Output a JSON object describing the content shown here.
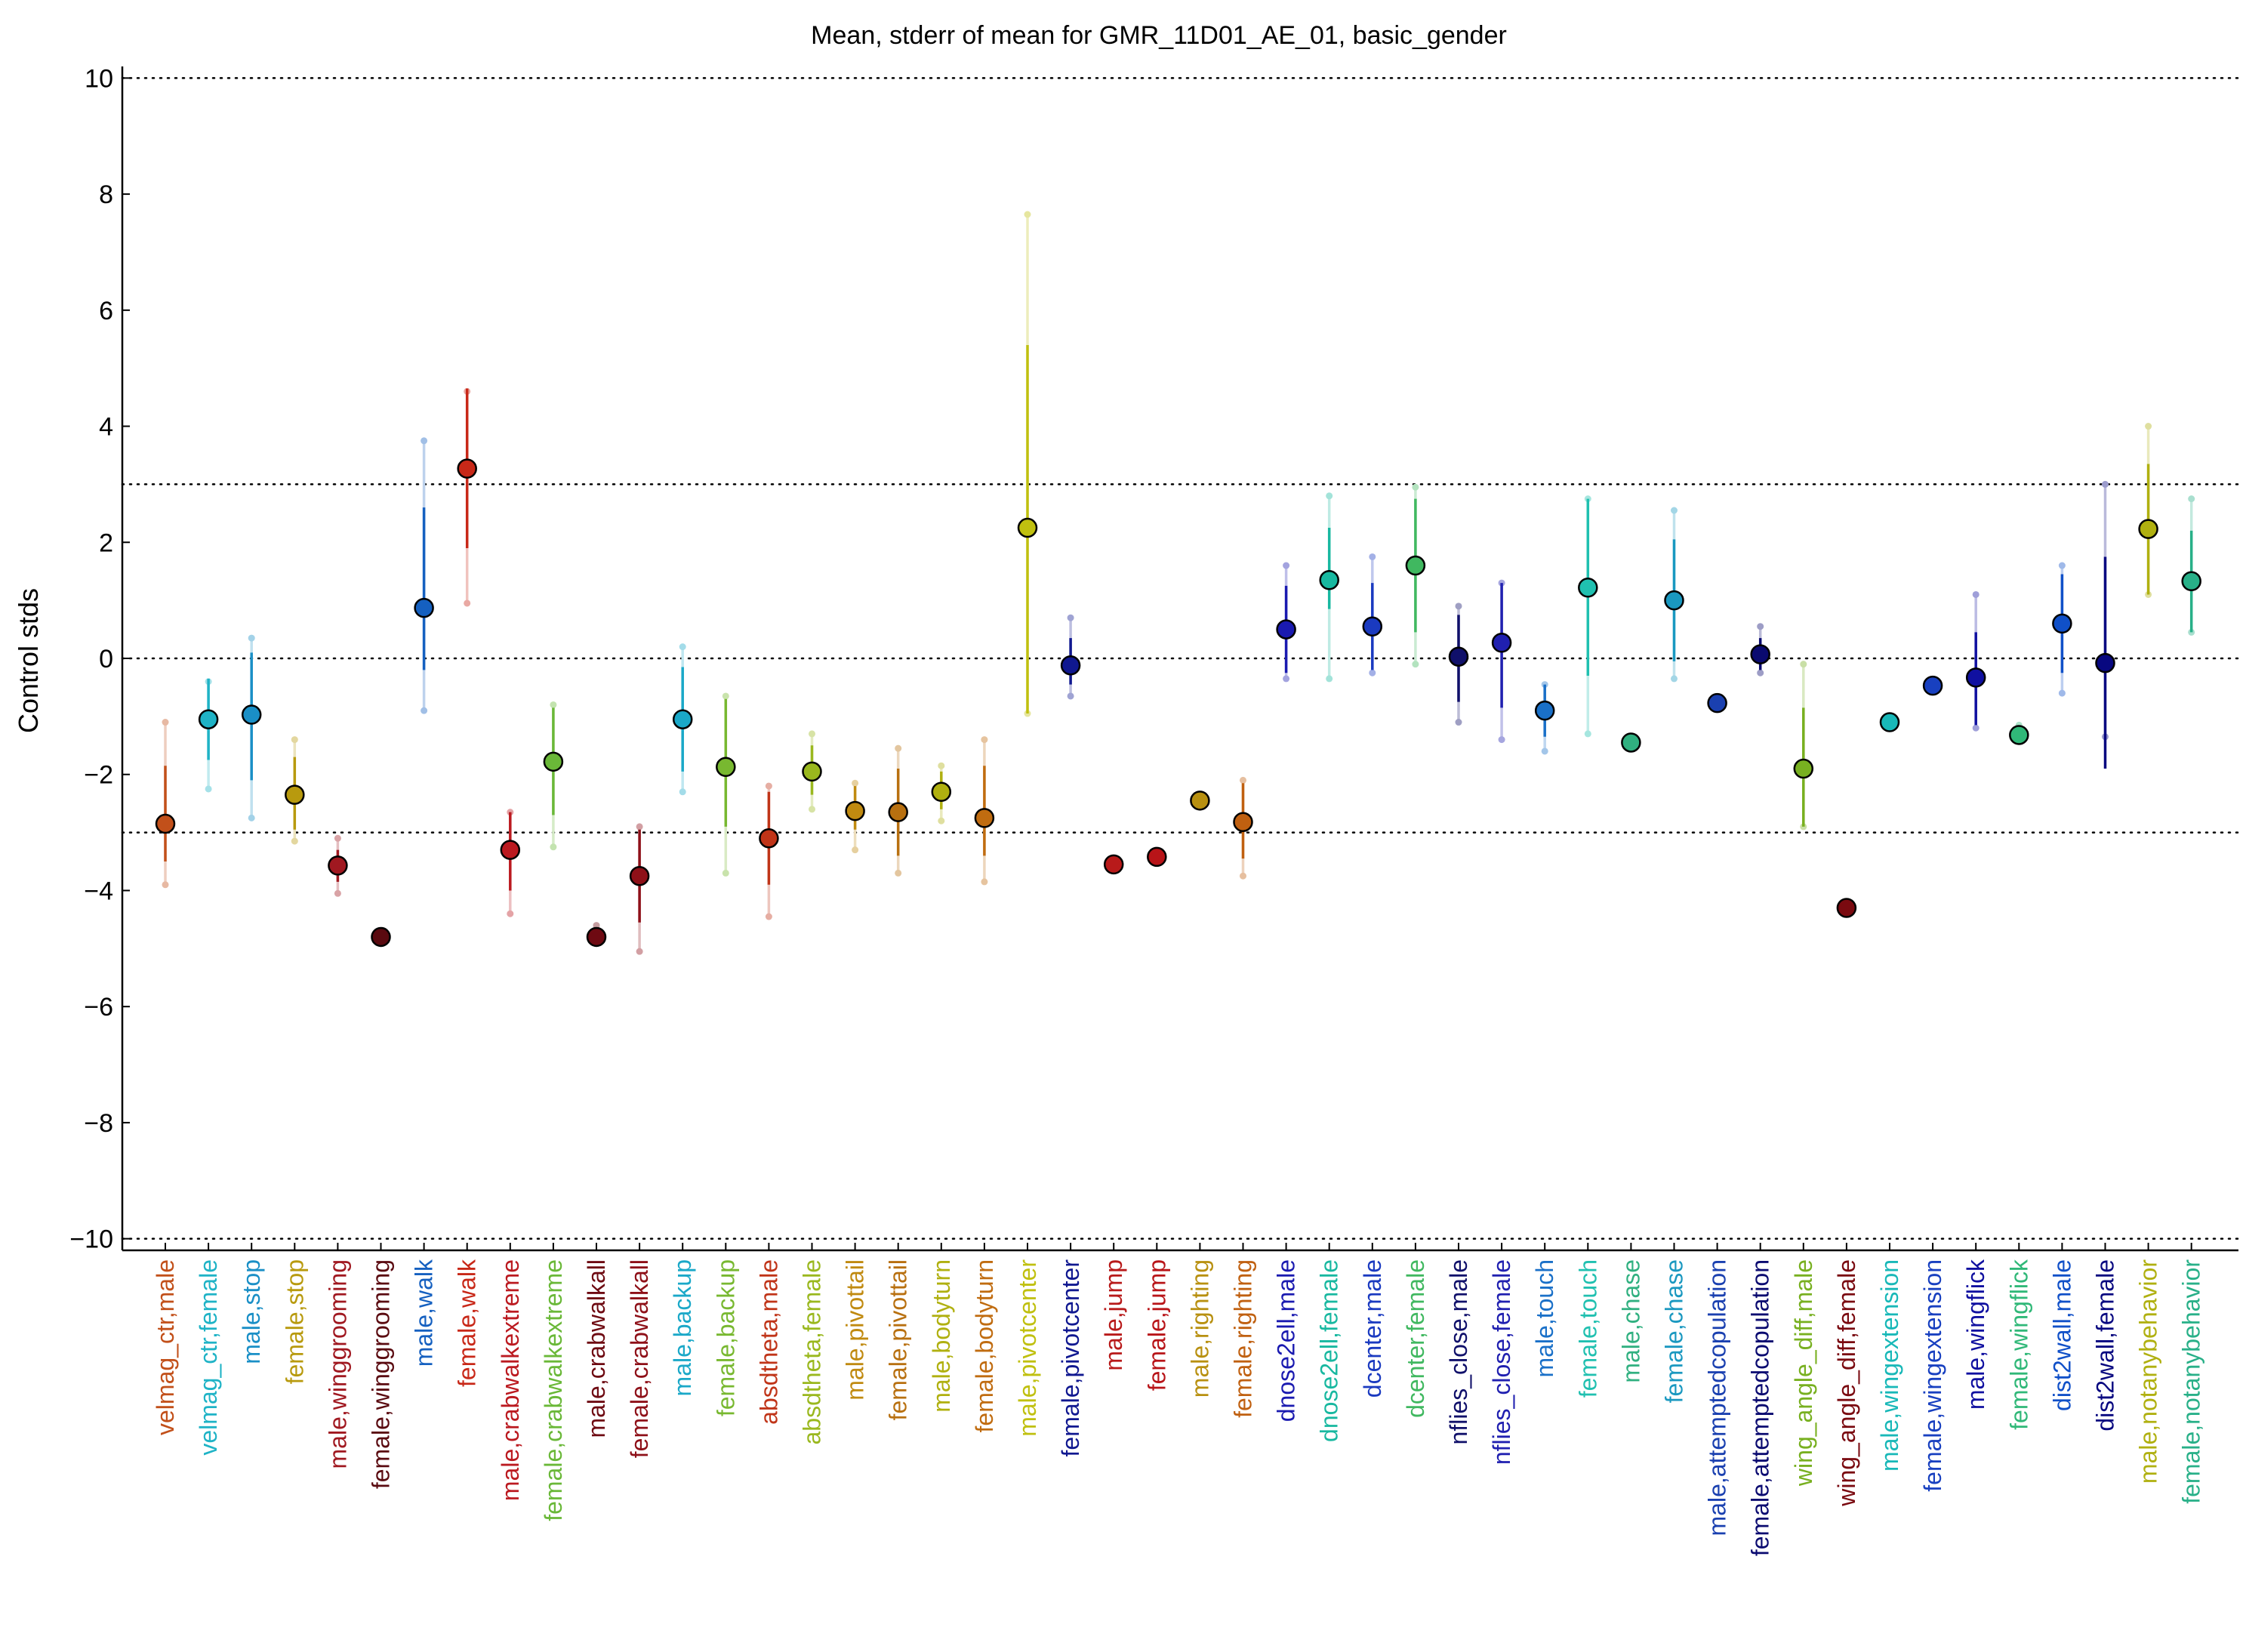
{
  "chart_data": {
    "type": "errorbar",
    "title": "Mean, stderr of mean for GMR_11D01_AE_01, basic_gender",
    "xlabel": "",
    "ylabel": "Control stds",
    "ylim": [
      -10.2,
      10.2
    ],
    "yticks": [
      10,
      8,
      6,
      4,
      2,
      0,
      -2,
      -4,
      -6,
      -8,
      -10
    ],
    "ytick_labels": [
      "10",
      "8",
      "6",
      "4",
      "2",
      "0",
      "−2",
      "−4",
      "−6",
      "−8",
      "−10"
    ],
    "reference_lines": [
      10,
      3,
      0,
      -3,
      -10
    ],
    "grid": false,
    "legend": "none",
    "categories": [
      "velmag_ctr,male",
      "velmag_ctr,female",
      "male,stop",
      "female,stop",
      "male,winggrooming",
      "female,winggrooming",
      "male,walk",
      "female,walk",
      "male,crabwalkextreme",
      "female,crabwalkextreme",
      "male,crabwalkall",
      "female,crabwalkall",
      "male,backup",
      "female,backup",
      "absdtheta,male",
      "absdtheta,female",
      "male,pivottail",
      "female,pivottail",
      "male,bodyturn",
      "female,bodyturn",
      "male,pivotcenter",
      "female,pivotcenter",
      "male,jump",
      "female,jump",
      "male,righting",
      "female,righting",
      "dnose2ell,male",
      "dnose2ell,female",
      "dcenter,male",
      "dcenter,female",
      "nflies_close,male",
      "nflies_close,female",
      "male,touch",
      "female,touch",
      "male,chase",
      "female,chase",
      "male,attemptedcopulation",
      "female,attemptedcopulation",
      "wing_angle_diff,male",
      "wing_angle_diff,female",
      "male,wingextension",
      "female,wingextension",
      "male,wingflick",
      "female,wingflick",
      "dist2wall,male",
      "dist2wall,female",
      "male,notanybehavior",
      "female,notanybehavior"
    ],
    "means": [
      -2.85,
      -1.05,
      -0.97,
      -2.35,
      -3.57,
      -4.8,
      0.87,
      3.27,
      -3.3,
      -1.78,
      -4.8,
      -3.75,
      -1.05,
      -1.87,
      -3.1,
      -1.95,
      -2.63,
      -2.65,
      -2.3,
      -2.75,
      2.25,
      -0.12,
      -3.55,
      -3.42,
      -2.45,
      -2.82,
      0.5,
      1.35,
      0.55,
      1.6,
      0.03,
      0.27,
      -0.9,
      1.22,
      -1.45,
      1.0,
      -0.77,
      0.07,
      -1.9,
      -4.3,
      -1.1,
      -0.47,
      -0.33,
      -1.32,
      0.6,
      -0.08,
      2.23,
      1.33
    ],
    "stderr_low": [
      -3.5,
      -1.75,
      -2.1,
      -2.95,
      -3.85,
      -4.8,
      -0.2,
      1.9,
      -4.0,
      -2.7,
      -4.8,
      -4.55,
      -1.95,
      -2.9,
      -3.9,
      -2.35,
      -2.95,
      -3.4,
      -2.6,
      -3.4,
      -0.95,
      -0.45,
      -3.55,
      -3.42,
      -2.45,
      -3.45,
      -0.25,
      0.85,
      -0.2,
      0.45,
      -0.75,
      -0.85,
      -1.35,
      -0.3,
      -1.45,
      -0.05,
      -0.77,
      -0.2,
      -2.9,
      -4.3,
      -1.1,
      -0.47,
      -1.15,
      -1.32,
      -0.25,
      -1.9,
      1.1,
      0.45
    ],
    "stderr_high": [
      -1.85,
      -0.35,
      0.1,
      -1.7,
      -3.3,
      -4.8,
      2.6,
      4.65,
      -2.65,
      -0.85,
      -4.8,
      -2.95,
      -0.15,
      -0.7,
      -2.3,
      -1.5,
      -2.2,
      -1.9,
      -1.95,
      -1.85,
      5.4,
      0.35,
      -3.55,
      -3.42,
      -2.45,
      -2.15,
      1.25,
      2.25,
      1.3,
      2.75,
      0.75,
      1.3,
      -0.45,
      2.75,
      -1.45,
      2.05,
      -0.77,
      0.35,
      -0.85,
      -4.3,
      -1.1,
      -0.47,
      0.45,
      -1.32,
      1.45,
      1.75,
      3.35,
      2.2
    ],
    "range_low": [
      -3.9,
      -2.25,
      -2.75,
      -3.15,
      -4.05,
      -4.8,
      -0.9,
      0.95,
      -4.4,
      -3.25,
      -4.65,
      -5.05,
      -2.3,
      -3.7,
      -4.45,
      -2.6,
      -3.3,
      -3.7,
      -2.8,
      -3.85,
      -0.95,
      -0.65,
      -3.55,
      -3.42,
      -2.45,
      -3.75,
      -0.35,
      -0.35,
      -0.25,
      -0.1,
      -1.1,
      -1.4,
      -1.6,
      -1.3,
      -1.45,
      -0.35,
      -0.77,
      -0.25,
      -2.9,
      -4.3,
      -1.1,
      -0.47,
      -1.2,
      -1.32,
      -0.6,
      -1.35,
      1.1,
      0.45
    ],
    "range_high": [
      -1.1,
      -0.4,
      0.35,
      -1.4,
      -3.1,
      -4.8,
      3.75,
      4.6,
      -2.65,
      -0.8,
      -4.6,
      -2.9,
      0.2,
      -0.65,
      -2.2,
      -1.3,
      -2.15,
      -1.55,
      -1.85,
      -1.4,
      7.65,
      0.7,
      -3.55,
      -3.42,
      -2.45,
      -2.1,
      1.6,
      2.8,
      1.75,
      2.95,
      0.9,
      1.3,
      -0.45,
      2.75,
      -1.45,
      2.55,
      -0.77,
      0.55,
      -0.1,
      -4.3,
      -1.1,
      -0.47,
      1.1,
      -1.15,
      1.6,
      3.0,
      4.0,
      2.75
    ],
    "colors": [
      "#c2501a",
      "#1fb3c6",
      "#1a8fc6",
      "#b89a0e",
      "#a01820",
      "#5a0a10",
      "#1560c0",
      "#c82818",
      "#bb1a20",
      "#6ab838",
      "#6e0a12",
      "#8e1018",
      "#1aa8c8",
      "#78b830",
      "#c03418",
      "#9ab81e",
      "#c08a10",
      "#b87010",
      "#b0b010",
      "#c06c10",
      "#c0c010",
      "#101890",
      "#b81a1a",
      "#b81418",
      "#b89010",
      "#c06010",
      "#1a1ab0",
      "#18b8a0",
      "#1a3ac0",
      "#40b860",
      "#10106a",
      "#2020b0",
      "#1a70c8",
      "#20c0b0",
      "#30b080",
      "#1a98c0",
      "#1a40b0",
      "#0a0a70",
      "#78b020",
      "#7a0a10",
      "#18b8b8",
      "#1840c0",
      "#1010a0",
      "#30b878",
      "#1050c8",
      "#080880",
      "#b0b010",
      "#28b088"
    ]
  }
}
